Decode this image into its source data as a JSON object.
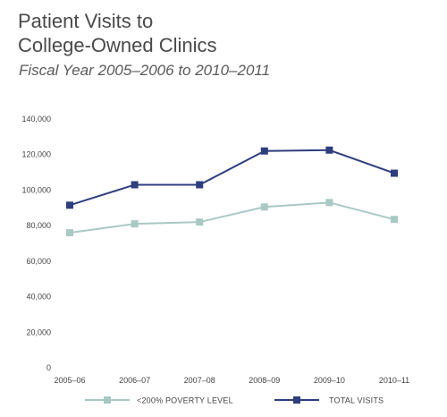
{
  "header": {
    "title_line1": "Patient Visits to",
    "title_line2": "College-Owned Clinics",
    "subtitle": "Fiscal Year 2005–2006 to 2010–2011"
  },
  "chart_data": {
    "type": "line",
    "title": "Patient Visits to College-Owned Clinics",
    "subtitle": "Fiscal Year 2005–2006 to 2010–2011",
    "categories": [
      "2005–06",
      "2006–07",
      "2007–08",
      "2008–09",
      "2009–10",
      "2010–11"
    ],
    "ylim": [
      0,
      140000
    ],
    "yticks": [
      0,
      20000,
      40000,
      60000,
      80000,
      100000,
      120000,
      140000
    ],
    "ytick_labels": [
      "0",
      "20,000",
      "40,000",
      "60,000",
      "80,000",
      "100,000",
      "120,000",
      "140,000"
    ],
    "grid": false,
    "legend_position": "bottom",
    "series": [
      {
        "name": "<200% POVERTY LEVEL",
        "color": "#a9c9c4",
        "values": [
          76000,
          81000,
          82000,
          90500,
          93000,
          83500
        ]
      },
      {
        "name": "TOTAL VISITS",
        "color": "#2e3e7e",
        "values": [
          91500,
          103000,
          103000,
          122000,
          122500,
          109500
        ]
      }
    ]
  }
}
